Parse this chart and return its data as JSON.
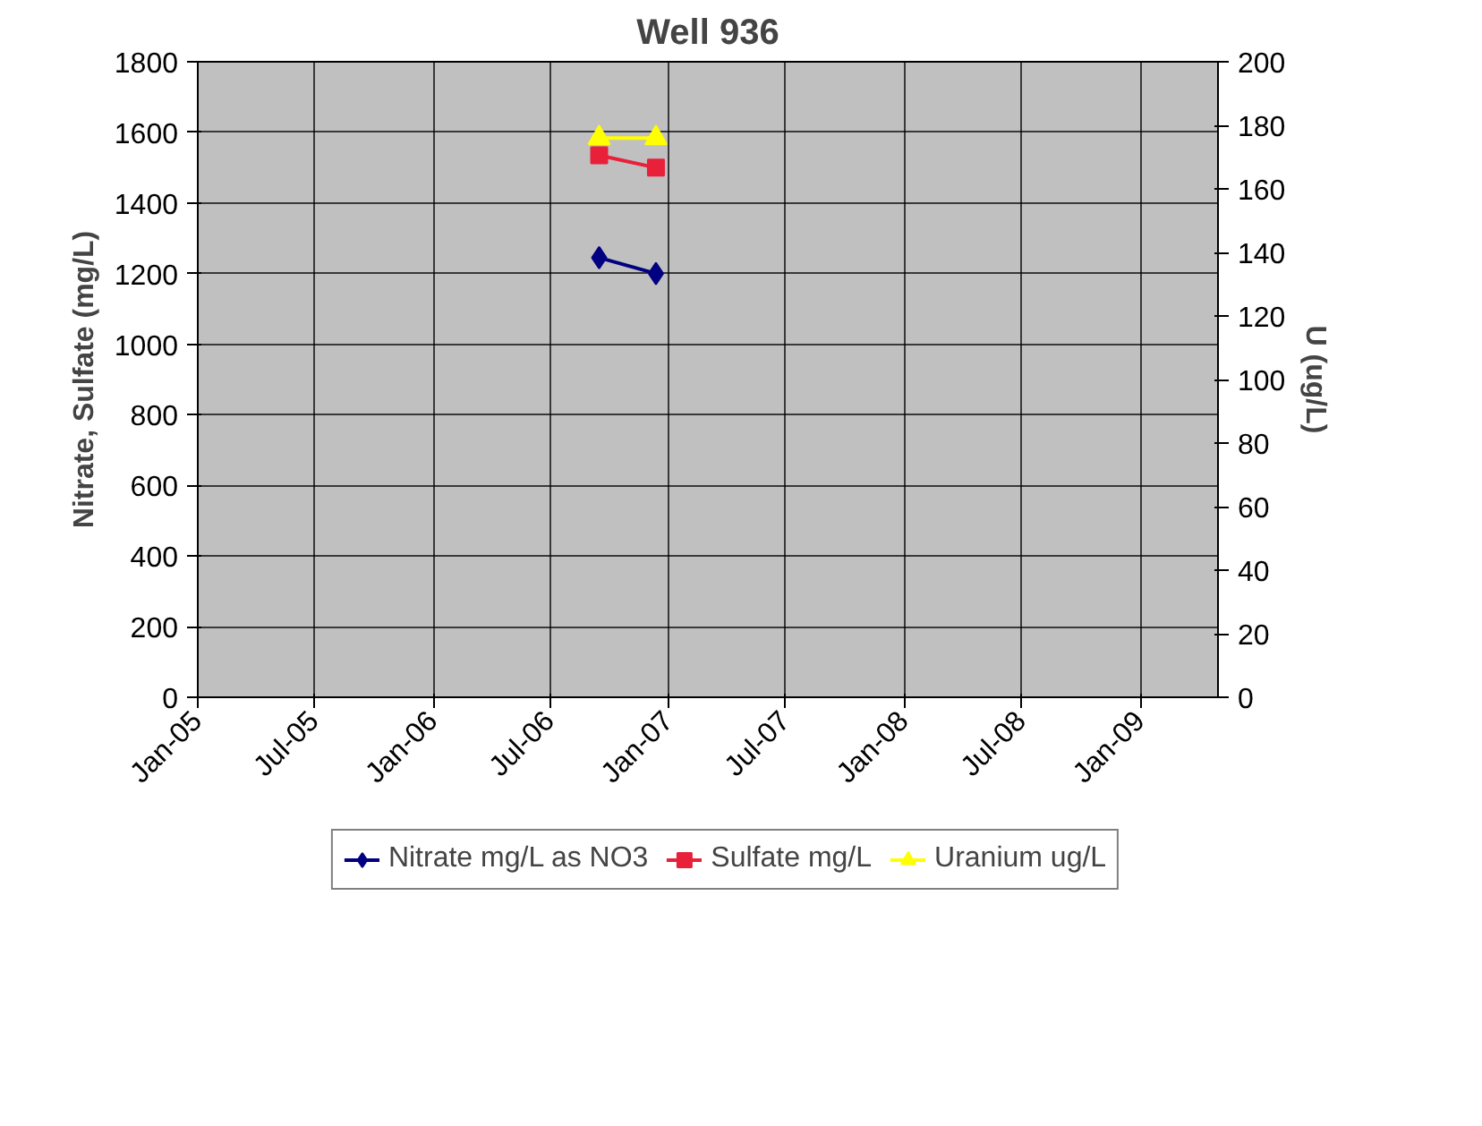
{
  "chart_data": {
    "type": "line",
    "title": "Well 936",
    "ylabel": "Nitrate, Sulfate (mg/L)",
    "y2label": "U (ug/L)",
    "x": [
      "2006-09-15",
      "2006-12-12"
    ],
    "series": [
      {
        "name": "Nitrate mg/L as NO3",
        "color": "#000080",
        "values": [
          1245,
          1200
        ],
        "marker": "diamond"
      },
      {
        "name": "Sulfate mg/L",
        "color": "#e8203a",
        "values": [
          1535,
          1500
        ],
        "marker": "square"
      },
      {
        "name": "Uranium ug/L",
        "color": "#ffff00",
        "values": [
          176,
          176
        ],
        "marker": "triangle",
        "axis": "y2"
      }
    ],
    "xlim": [
      "2005-01-01",
      "2009-05-01"
    ],
    "xticks": [
      {
        "value": "2005-01-01",
        "label": "Jan-05"
      },
      {
        "value": "2005-07-01",
        "label": "Jul-05"
      },
      {
        "value": "2006-01-01",
        "label": "Jan-06"
      },
      {
        "value": "2006-07-01",
        "label": "Jul-06"
      },
      {
        "value": "2007-01-01",
        "label": "Jan-07"
      },
      {
        "value": "2007-07-01",
        "label": "Jul-07"
      },
      {
        "value": "2008-01-01",
        "label": "Jan-08"
      },
      {
        "value": "2008-07-01",
        "label": "Jul-08"
      },
      {
        "value": "2009-01-01",
        "label": "Jan-09"
      }
    ],
    "ylim": [
      0,
      1800
    ],
    "yticks": [
      0,
      200,
      400,
      600,
      800,
      1000,
      1200,
      1400,
      1600,
      1800
    ],
    "y2lim": [
      0,
      200
    ],
    "y2ticks": [
      0,
      20,
      40,
      60,
      80,
      100,
      120,
      140,
      160,
      180,
      200
    ],
    "grid": true,
    "legend": "bottom",
    "line_style": "solid"
  }
}
